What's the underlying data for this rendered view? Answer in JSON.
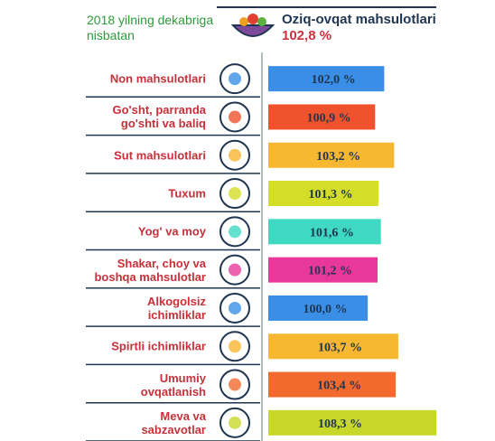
{
  "header": {
    "subtitle": "2018 yilning dekabriga nisbatan",
    "title": "Oziq-ovqat mahsulotlari",
    "value": "102,8 %"
  },
  "chart_data": {
    "type": "bar",
    "orientation": "horizontal",
    "categories": [
      "Non mahsulotlari",
      "Go'sht, parranda\ngo'shti va baliq",
      "Sut mahsulotlari",
      "Tuxum",
      "Yog' va moy",
      "Shakar, choy va\nboshqa mahsulotlar",
      "Alkogolsiz\nichimliklar",
      "Spirtli ichimliklar",
      "Umumiy\novqatlanish",
      "Meva va\nsabzavotlar"
    ],
    "values": [
      102.0,
      100.9,
      103.2,
      101.3,
      101.6,
      101.2,
      100.0,
      103.7,
      103.4,
      108.3
    ],
    "value_labels": [
      "102,0 %",
      "100,9 %",
      "103,2 %",
      "101,3 %",
      "101,6 %",
      "101,2 %",
      "100,0 %",
      "103,7 %",
      "103,4 %",
      "108,3 %"
    ],
    "colors": [
      "#3a8ee6",
      "#f0522d",
      "#f7b731",
      "#d4dd27",
      "#3ed8c3",
      "#e8399a",
      "#3a8ee6",
      "#f7b731",
      "#f26a2e",
      "#c8d82b"
    ],
    "xlim": [
      88,
      112
    ]
  }
}
